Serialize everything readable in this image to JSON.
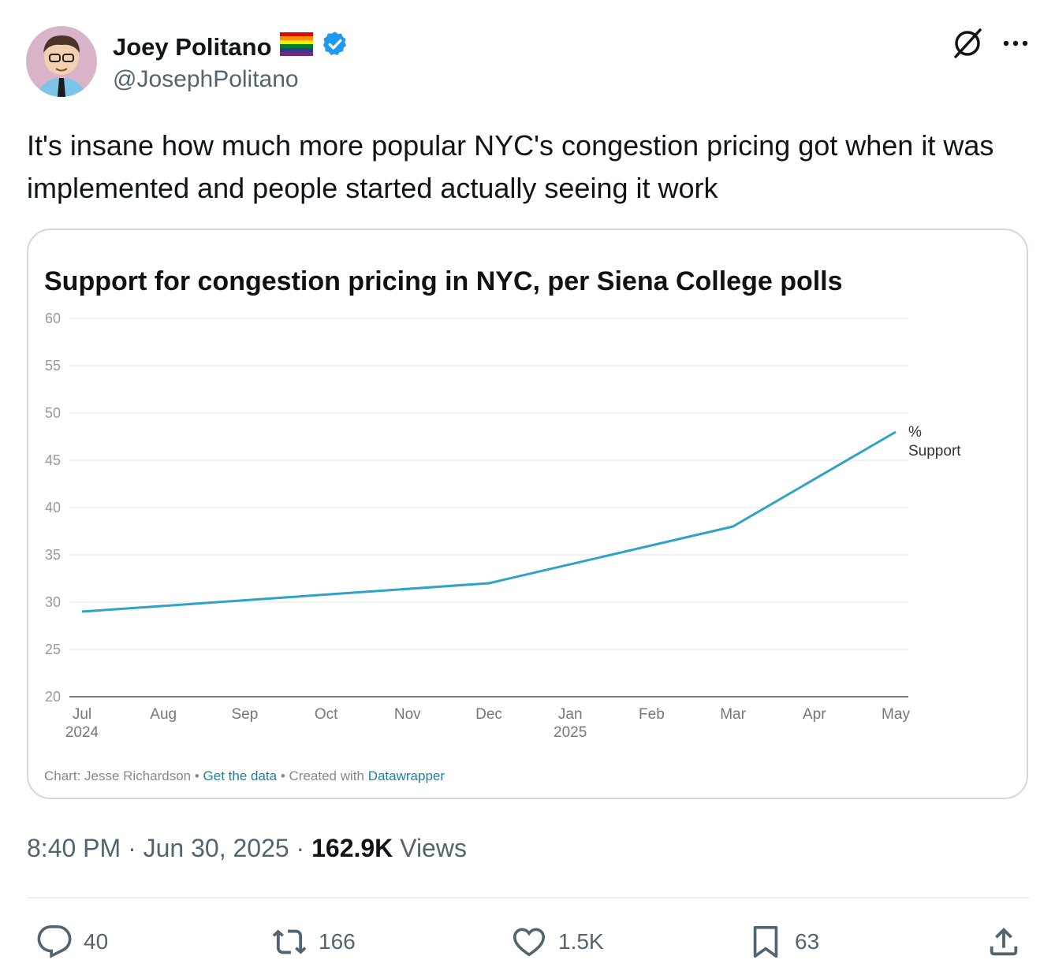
{
  "author": {
    "name": "Joey Politano",
    "flag_icon": "rainbow-flag-icon",
    "verified_icon": "verified-badge-icon",
    "handle": "@JosephPolitano"
  },
  "header_icons": [
    "grok-icon",
    "more-icon"
  ],
  "tweet": {
    "text": "It's insane how much more popular NYC's congestion pricing got when it was implemented and people started actually seeing it work"
  },
  "chart_data": {
    "type": "line",
    "title": "Support for congestion pricing in NYC, per Siena College polls",
    "categories": [
      "Jul",
      "Aug",
      "Sep",
      "Oct",
      "Nov",
      "Dec",
      "Jan",
      "Feb",
      "Mar",
      "Apr",
      "May"
    ],
    "category_sublabels": {
      "0": "2024",
      "6": "2025"
    },
    "series": [
      {
        "name": "% Support",
        "color": "#2fa3c4",
        "points": [
          {
            "x": "Jul",
            "y": 29
          },
          {
            "x": "Dec",
            "y": 32
          },
          {
            "x": "Mar",
            "y": 38
          },
          {
            "x": "May",
            "y": 48
          }
        ]
      }
    ],
    "ylim": [
      20,
      60
    ],
    "yticks": [
      20,
      25,
      30,
      35,
      40,
      45,
      50,
      55,
      60
    ],
    "grid": true,
    "footer": {
      "prefix": "Chart: Jesse Richardson • ",
      "link1": "Get the data",
      "middle": " • Created with ",
      "link2": "Datawrapper"
    }
  },
  "timestamp": {
    "time": "8:40 PM",
    "date": "Jun 30, 2025",
    "views_count": "162.9K",
    "views_label": "Views"
  },
  "actions": {
    "reply": "40",
    "repost": "166",
    "like": "1.5K",
    "bookmark": "63"
  },
  "colors": {
    "accent": "#1d9bf0",
    "line": "#2fa3c4",
    "link": "#1d81a2"
  }
}
